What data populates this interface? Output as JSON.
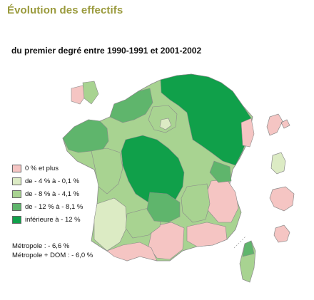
{
  "title": "Évolution des effectifs",
  "subtitle": "du premier degré entre 1990-1991 et 2001-2002",
  "legend": [
    {
      "label": "0 % et plus",
      "color": "#f5c5c3"
    },
    {
      "label": "de - 4 % à - 0,1 %",
      "color": "#dcebc4"
    },
    {
      "label": "de - 8 % à - 4,1 %",
      "color": "#a8d391"
    },
    {
      "label": "de - 12 % à - 8,1 %",
      "color": "#5fb56c"
    },
    {
      "label": "inférieure à - 12 %",
      "color": "#10a04a"
    }
  ],
  "notes": {
    "metropole": "Métropole : - 6,6 %",
    "metropole_dom": "Métropole + DOM : - 6,0 %"
  },
  "colors": {
    "border": "#8a8a8a",
    "title": "#9a9a3c"
  }
}
